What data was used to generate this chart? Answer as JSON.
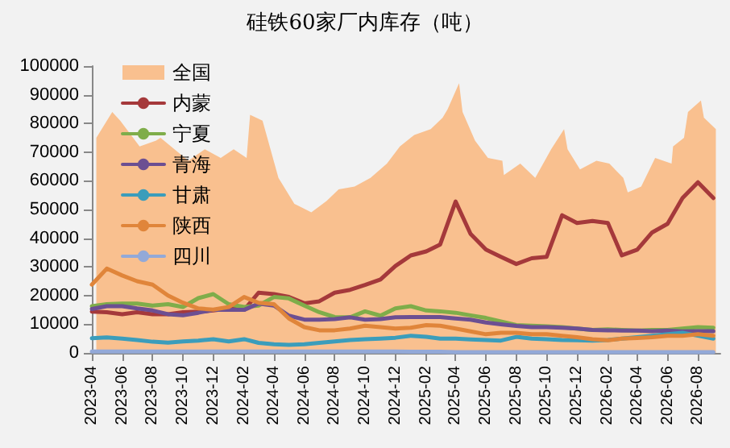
{
  "chart_data": {
    "type": "line",
    "title": "硅铁60家厂内库存（吨）",
    "x": [
      "2023-04",
      "2023-05",
      "2023-06",
      "2023-07",
      "2023-08",
      "2023-09",
      "2023-10",
      "2023-11",
      "2023-12",
      "2024-01",
      "2024-02",
      "2024-03",
      "2024-04",
      "2024-05",
      "2024-06",
      "2024-07",
      "2024-08",
      "2024-09",
      "2024-10",
      "2024-11",
      "2024-12",
      "2025-01",
      "2025-02",
      "2025-03",
      "2025-04",
      "2025-05",
      "2025-06",
      "2025-07",
      "2025-08",
      "2025-09",
      "2025-10",
      "2025-11",
      "2025-12",
      "2026-01",
      "2026-02",
      "2026-03",
      "2026-04",
      "2026-05",
      "2026-06",
      "2026-07",
      "2026-08",
      "2026-09"
    ],
    "series": [
      {
        "name": "全国",
        "type": "area",
        "color": "#f9c08f",
        "x": [
          "2023-04-10",
          "2023-05-12",
          "2023-05-28",
          "2023-07-06",
          "2023-08-08",
          "2023-08-17",
          "2023-10-12",
          "2023-11-14",
          "2023-12-16",
          "2024-01-11",
          "2024-02-06",
          "2024-02-13",
          "2024-03-09",
          "2024-04-10",
          "2024-05-12",
          "2024-06-15",
          "2024-07-16",
          "2024-08-09",
          "2024-09-10",
          "2024-10-12",
          "2024-11-14",
          "2024-12-10",
          "2025-01-08",
          "2025-02-10",
          "2025-03-06",
          "2025-03-16",
          "2025-04-08",
          "2025-04-15",
          "2025-05-10",
          "2025-06-05",
          "2025-07-04",
          "2025-07-07",
          "2025-08-09",
          "2025-09-08",
          "2025-10-10",
          "2025-11-05",
          "2025-11-12",
          "2025-12-07",
          "2026-01-09",
          "2026-02-04",
          "2026-03-04",
          "2026-03-13",
          "2026-04-09",
          "2026-05-07",
          "2026-06-09",
          "2026-06-12",
          "2026-07-04",
          "2026-07-12",
          "2026-08-07",
          "2026-08-13",
          "2026-09-06"
        ],
        "values": [
          75000,
          84000,
          81000,
          72000,
          74000,
          75000,
          67000,
          71000,
          68000,
          71000,
          68000,
          83000,
          81000,
          61000,
          52000,
          49000,
          53000,
          57000,
          58000,
          61000,
          66000,
          72000,
          76000,
          78000,
          82000,
          85000,
          94000,
          84000,
          74000,
          68000,
          67000,
          62000,
          66000,
          61000,
          71000,
          78000,
          71000,
          64000,
          67000,
          66000,
          61000,
          56000,
          58000,
          68000,
          66000,
          72000,
          75000,
          84000,
          88000,
          82000,
          78000
        ]
      },
      {
        "name": "内蒙",
        "color": "#a5393b",
        "values": [
          14400,
          14200,
          13500,
          14200,
          13500,
          13500,
          14200,
          14400,
          14800,
          15500,
          15000,
          21000,
          20500,
          19500,
          17300,
          18000,
          21000,
          22000,
          23700,
          25600,
          30300,
          34000,
          35400,
          37800,
          52800,
          41500,
          36000,
          33500,
          31000,
          33000,
          33500,
          48000,
          45300,
          46000,
          45300,
          34000,
          36000,
          42000,
          45000,
          54000,
          59500,
          54000
        ]
      },
      {
        "name": "宁夏",
        "color": "#7fad4a",
        "values": [
          16300,
          17000,
          17200,
          17200,
          16500,
          17000,
          16000,
          19100,
          20500,
          17000,
          16000,
          16500,
          19500,
          19000,
          16500,
          14200,
          12500,
          12400,
          14500,
          13000,
          15500,
          16300,
          14800,
          14500,
          14000,
          13100,
          12200,
          11000,
          9700,
          9500,
          9300,
          9000,
          8500,
          8000,
          8200,
          8000,
          7800,
          8000,
          8000,
          8500,
          9000,
          8800
        ]
      },
      {
        "name": "青海",
        "color": "#6c4f92",
        "values": [
          15300,
          16300,
          16300,
          15500,
          14800,
          13500,
          13100,
          14000,
          15000,
          15000,
          15000,
          17200,
          16500,
          13000,
          11600,
          11600,
          11800,
          12400,
          11600,
          11800,
          12400,
          12500,
          12500,
          12500,
          12000,
          11600,
          10600,
          10000,
          9400,
          9000,
          9000,
          8800,
          8500,
          8000,
          7900,
          7800,
          7800,
          7600,
          7800,
          7500,
          7600,
          7600
        ]
      },
      {
        "name": "甘肃",
        "color": "#3b9dbb",
        "values": [
          5100,
          5400,
          5000,
          4500,
          3900,
          3600,
          4000,
          4300,
          4800,
          4000,
          4800,
          3500,
          3000,
          2800,
          3000,
          3500,
          4000,
          4500,
          4800,
          5000,
          5300,
          6000,
          5600,
          5000,
          5000,
          4700,
          4500,
          4300,
          5600,
          5000,
          4800,
          4500,
          4400,
          4300,
          4500,
          5000,
          5500,
          6000,
          6500,
          7000,
          6000,
          5000
        ]
      },
      {
        "name": "陕西",
        "color": "#e0853a",
        "values": [
          23800,
          29400,
          27000,
          25000,
          23800,
          20000,
          17500,
          15500,
          15100,
          16000,
          19500,
          17500,
          17000,
          12000,
          9000,
          7900,
          7900,
          8500,
          9500,
          9000,
          8500,
          8800,
          9700,
          9500,
          8500,
          7500,
          6500,
          7000,
          7000,
          6500,
          6500,
          6000,
          5500,
          4800,
          4400,
          5000,
          5200,
          5500,
          6000,
          6000,
          6500,
          6000
        ]
      },
      {
        "name": "四川",
        "color": "#93a9d8",
        "values": [
          500,
          500,
          500,
          500,
          500,
          500,
          500,
          500,
          500,
          500,
          500,
          500,
          500,
          500,
          500,
          500,
          500,
          500,
          500,
          500,
          500,
          400,
          400,
          400,
          300,
          300,
          300,
          300,
          300,
          300,
          300,
          300,
          300,
          300,
          300,
          300,
          300,
          300,
          300,
          300,
          300,
          300
        ]
      }
    ],
    "xlim": [
      "2023-04",
      "2026-09-15"
    ],
    "xticks": [
      "2023-04",
      "2023-06",
      "2023-08",
      "2023-10",
      "2023-12",
      "2024-02",
      "2024-04",
      "2024-06",
      "2024-08",
      "2024-10",
      "2024-12",
      "2025-02",
      "2025-04",
      "2025-06",
      "2025-08",
      "2025-10",
      "2025-12",
      "2026-02",
      "2026-04",
      "2026-06",
      "2026-08"
    ],
    "ylim": [
      0,
      100000
    ],
    "yticks": [
      0,
      10000,
      20000,
      30000,
      40000,
      50000,
      60000,
      70000,
      80000,
      90000,
      100000
    ],
    "grid": false,
    "legend": "top left",
    "marker": "none",
    "line_style": "solid"
  }
}
